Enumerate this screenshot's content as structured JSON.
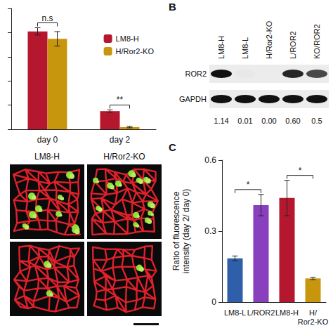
{
  "chart_data": [
    {
      "type": "bar",
      "categories": [
        "day 0",
        "day 2"
      ],
      "series": [
        {
          "name": "LM8-H",
          "color": "#b5172f",
          "values": [
            4.05,
            0.75
          ],
          "errors": [
            0.15,
            0.05
          ]
        },
        {
          "name": "H/Ror2-KO",
          "color": "#c8960c",
          "values": [
            3.74,
            0.09
          ],
          "errors": [
            0.3,
            0.03
          ]
        }
      ],
      "ylim": [
        0,
        5
      ],
      "yticks": [
        0,
        1,
        2,
        3,
        4,
        5
      ],
      "tick_labels": "x",
      "grid": false,
      "legend": "top-right",
      "annotations": [
        {
          "text": "n.s",
          "category": "day 0"
        },
        {
          "text": "**",
          "category": "day 2"
        }
      ]
    },
    {
      "type": "bar",
      "panel": "C",
      "y_label": "Ratio of fluorescence intensity (day 2/ day 0)",
      "categories": [
        "LM8-L",
        "L/ROR2",
        "LM8-H",
        "H/Ror2-KO"
      ],
      "values": [
        0.185,
        0.41,
        0.44,
        0.1
      ],
      "errors": [
        0.01,
        0.045,
        0.075,
        0.005
      ],
      "colors": [
        "#2f5fa8",
        "#8a3fbf",
        "#b5172f",
        "#c8960c"
      ],
      "ylim": [
        0,
        0.6
      ],
      "yticks": [
        0,
        0.3,
        0.6
      ],
      "grid": false,
      "annotations": [
        {
          "text": "*",
          "between": [
            "LM8-L",
            "L/ROR2"
          ]
        },
        {
          "text": "*",
          "between": [
            "LM8-H",
            "H/Ror2-KO"
          ]
        }
      ]
    }
  ],
  "blot": {
    "panel": "B",
    "lanes": [
      "LM8-H",
      "LM8-L",
      "H/Ror2-KO",
      "L/ROR2",
      "KO/ROR2"
    ],
    "rows": [
      "ROR2",
      "GAPDH"
    ],
    "quantification": [
      "1.14",
      "0.01",
      "0.00",
      "0.60",
      "0.5"
    ]
  },
  "images": {
    "columns": [
      "LM8-H",
      "H/Ror2-KO"
    ]
  }
}
